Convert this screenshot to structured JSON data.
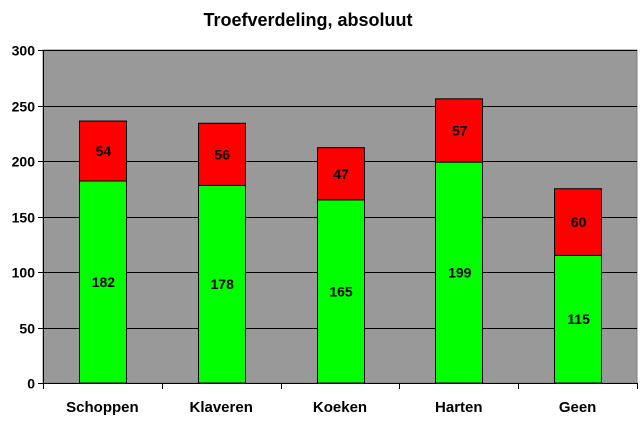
{
  "chart_data": {
    "type": "bar",
    "stacked": true,
    "title": "Troefverdeling, absoluut",
    "xlabel": "",
    "ylabel": "",
    "categories": [
      "Schoppen",
      "Klaveren",
      "Koeken",
      "Harten",
      "Geen"
    ],
    "series": [
      {
        "values": [
          182,
          178,
          165,
          199,
          115
        ],
        "color": "#00ff00"
      },
      {
        "values": [
          54,
          56,
          47,
          57,
          60
        ],
        "color": "#ff0000"
      }
    ],
    "ylim": [
      0,
      300
    ],
    "yticks": [
      0,
      50,
      100,
      150,
      200,
      250,
      300
    ],
    "grid": true,
    "plot_background": "#999999",
    "legend": "none"
  }
}
